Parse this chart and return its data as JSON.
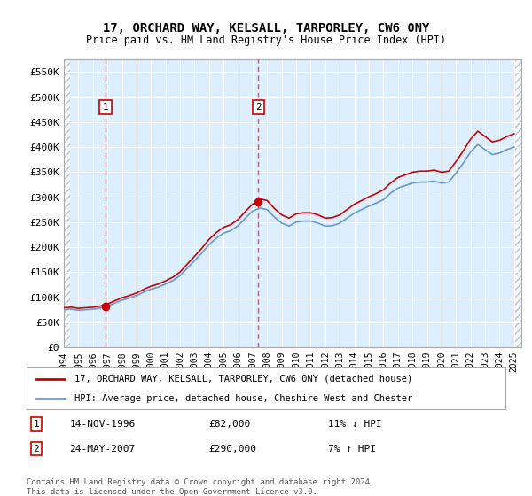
{
  "title1": "17, ORCHARD WAY, KELSALL, TARPORLEY, CW6 0NY",
  "title2": "Price paid vs. HM Land Registry's House Price Index (HPI)",
  "xlabel": "",
  "ylabel": "",
  "ylim": [
    0,
    575000
  ],
  "yticks": [
    0,
    50000,
    100000,
    150000,
    200000,
    250000,
    300000,
    350000,
    400000,
    450000,
    500000,
    550000
  ],
  "ytick_labels": [
    "£0",
    "£50K",
    "£100K",
    "£150K",
    "£200K",
    "£250K",
    "£300K",
    "£350K",
    "£400K",
    "£450K",
    "£500K",
    "£550K"
  ],
  "xlim_start": 1994.0,
  "xlim_end": 2025.5,
  "xticks": [
    1994,
    1995,
    1996,
    1997,
    1998,
    1999,
    2000,
    2001,
    2002,
    2003,
    2004,
    2005,
    2006,
    2007,
    2008,
    2009,
    2010,
    2011,
    2012,
    2013,
    2014,
    2015,
    2016,
    2017,
    2018,
    2019,
    2020,
    2021,
    2022,
    2023,
    2024,
    2025
  ],
  "background_color": "#ffffff",
  "plot_bg_color": "#ddeeff",
  "hatch_color": "#cccccc",
  "grid_color": "#ffffff",
  "red_line_color": "#cc0000",
  "blue_line_color": "#6699cc",
  "sale1_x": 1996.87,
  "sale1_y": 82000,
  "sale2_x": 2007.39,
  "sale2_y": 290000,
  "vline_color": "#ff4444",
  "legend_label1": "17, ORCHARD WAY, KELSALL, TARPORLEY, CW6 0NY (detached house)",
  "legend_label2": "HPI: Average price, detached house, Cheshire West and Chester",
  "note1_num": "1",
  "note1_date": "14-NOV-1996",
  "note1_price": "£82,000",
  "note1_hpi": "11% ↓ HPI",
  "note2_num": "2",
  "note2_date": "24-MAY-2007",
  "note2_price": "£290,000",
  "note2_hpi": "7% ↑ HPI",
  "footer": "Contains HM Land Registry data © Crown copyright and database right 2024.\nThis data is licensed under the Open Government Licence v3.0."
}
